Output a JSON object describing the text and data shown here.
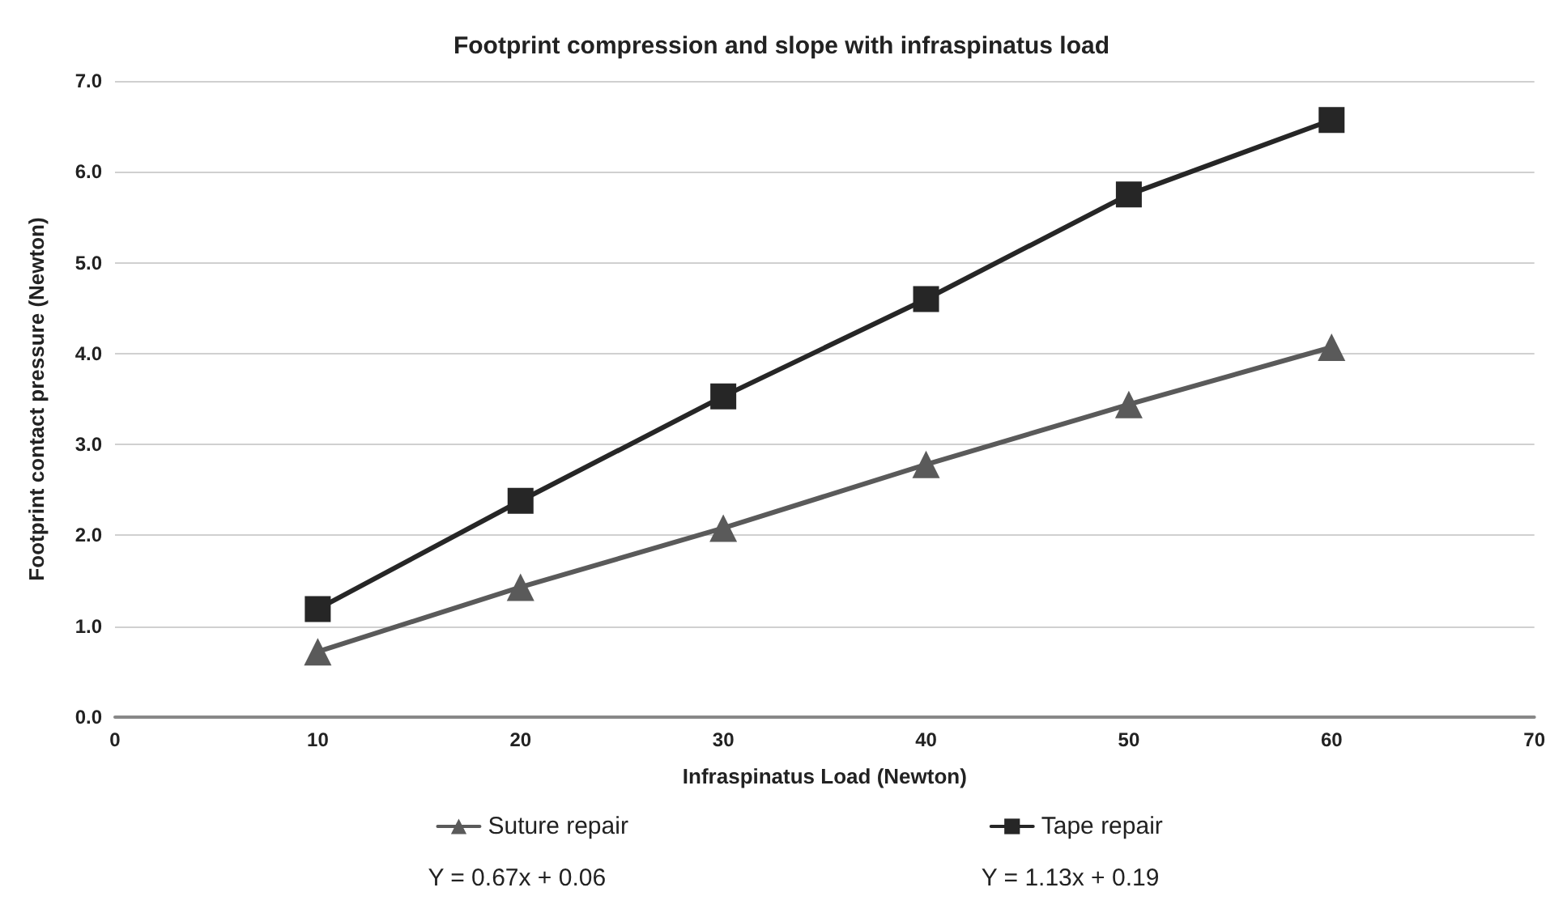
{
  "chart_data": {
    "type": "line",
    "title": "Footprint compression and slope with infraspinatus load",
    "xlabel": "Infraspinatus Load (Newton)",
    "ylabel": "Footprint contact pressure (Newton)",
    "x": [
      10,
      20,
      30,
      40,
      50,
      60
    ],
    "series": [
      {
        "name": "Suture repair",
        "color": "#5a5a5a",
        "marker": "triangle",
        "values": [
          0.72,
          1.43,
          2.08,
          2.78,
          3.44,
          4.07
        ]
      },
      {
        "name": "Tape repair",
        "color": "#262626",
        "marker": "square",
        "values": [
          1.19,
          2.38,
          3.53,
          4.6,
          5.75,
          6.57
        ]
      }
    ],
    "xlim": [
      0,
      70
    ],
    "xticks": [
      0,
      10,
      20,
      30,
      40,
      50,
      60,
      70
    ],
    "ylim": [
      0,
      7
    ],
    "yticks": [
      {
        "value": 0,
        "label": "0.0"
      },
      {
        "value": 1,
        "label": "1.0"
      },
      {
        "value": 2,
        "label": "2.0"
      },
      {
        "value": 3,
        "label": "3.0"
      },
      {
        "value": 4,
        "label": "4.0"
      },
      {
        "value": 5,
        "label": "5.0"
      },
      {
        "value": 6,
        "label": "6.0"
      },
      {
        "value": 7,
        "label": "7.0"
      }
    ],
    "annotations": [
      "Y = 0.67x + 0.06",
      "Y = 1.13x + 0.19"
    ],
    "grid": "y",
    "legend": "bottom",
    "line_style": "solid"
  }
}
